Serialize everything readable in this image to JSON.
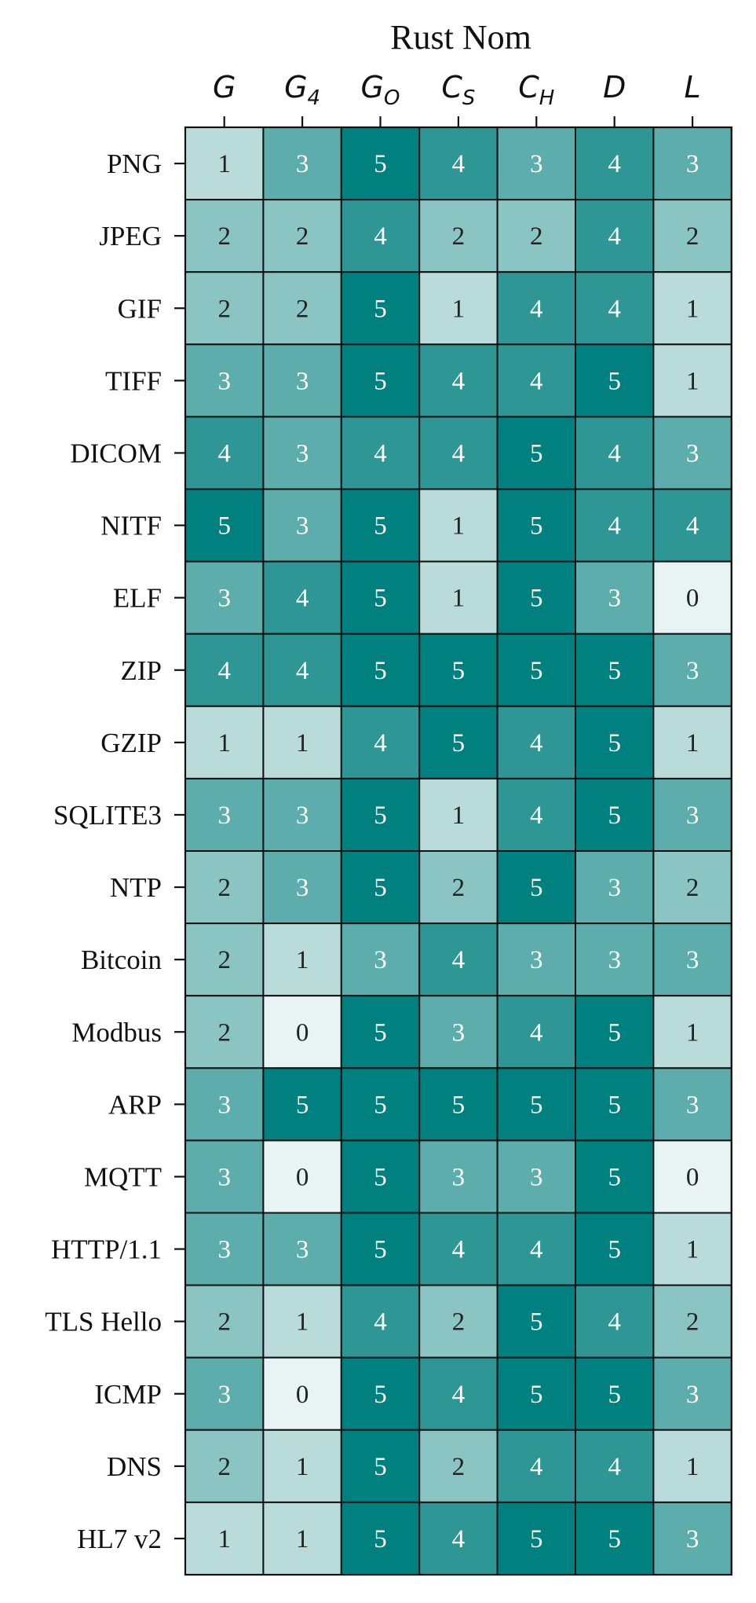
{
  "chart_data": {
    "type": "heatmap",
    "title": "Rust Nom",
    "columns": [
      {
        "base": "G",
        "sub": ""
      },
      {
        "base": "G",
        "sub": "4"
      },
      {
        "base": "G",
        "sub": "O"
      },
      {
        "base": "C",
        "sub": "S"
      },
      {
        "base": "C",
        "sub": "H"
      },
      {
        "base": "D",
        "sub": ""
      },
      {
        "base": "L",
        "sub": ""
      }
    ],
    "rows": [
      "PNG",
      "JPEG",
      "GIF",
      "TIFF",
      "DICOM",
      "NITF",
      "ELF",
      "ZIP",
      "GZIP",
      "SQLITE3",
      "NTP",
      "Bitcoin",
      "Modbus",
      "ARP",
      "MQTT",
      "HTTP/1.1",
      "TLS Hello",
      "ICMP",
      "DNS",
      "HL7 v2"
    ],
    "values": [
      [
        1,
        3,
        5,
        4,
        3,
        4,
        3
      ],
      [
        2,
        2,
        4,
        2,
        2,
        4,
        2
      ],
      [
        2,
        2,
        5,
        1,
        4,
        4,
        1
      ],
      [
        3,
        3,
        5,
        4,
        4,
        5,
        1
      ],
      [
        4,
        3,
        4,
        4,
        5,
        4,
        3
      ],
      [
        5,
        3,
        5,
        1,
        5,
        4,
        4
      ],
      [
        3,
        4,
        5,
        1,
        5,
        3,
        0
      ],
      [
        4,
        4,
        5,
        5,
        5,
        5,
        3
      ],
      [
        1,
        1,
        4,
        5,
        4,
        5,
        1
      ],
      [
        3,
        3,
        5,
        1,
        4,
        5,
        3
      ],
      [
        2,
        3,
        5,
        2,
        5,
        3,
        2
      ],
      [
        2,
        1,
        3,
        4,
        3,
        3,
        3
      ],
      [
        2,
        0,
        5,
        3,
        4,
        5,
        1
      ],
      [
        3,
        5,
        5,
        5,
        5,
        5,
        3
      ],
      [
        3,
        0,
        5,
        3,
        3,
        5,
        0
      ],
      [
        3,
        3,
        5,
        4,
        4,
        5,
        1
      ],
      [
        2,
        1,
        4,
        2,
        5,
        4,
        2
      ],
      [
        3,
        0,
        5,
        4,
        5,
        5,
        3
      ],
      [
        2,
        1,
        5,
        2,
        4,
        4,
        1
      ],
      [
        1,
        1,
        5,
        4,
        5,
        5,
        3
      ]
    ],
    "scale": [
      0,
      5
    ],
    "colors": {
      "0": "#e8f4f3",
      "1": "#b9dcdb",
      "2": "#8ac4c3",
      "3": "#5cadab",
      "4": "#2e9795",
      "5": "#00807e"
    },
    "text_colors": {
      "dark": "#222222",
      "light": "#ffffff"
    }
  }
}
